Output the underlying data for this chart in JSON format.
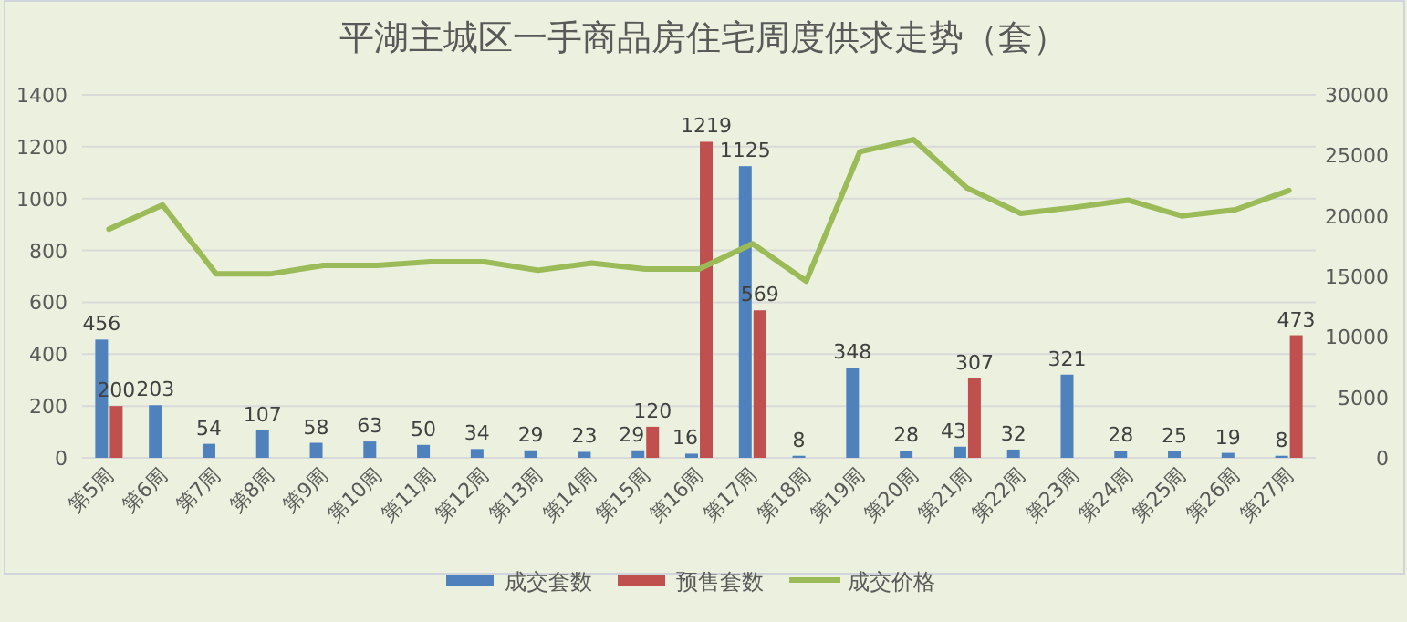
{
  "chart_data": {
    "type": "bar",
    "title": "平湖主城区一手商品房住宅周度供求走势（套）",
    "categories": [
      "第5周",
      "第6周",
      "第7周",
      "第8周",
      "第9周",
      "第10周",
      "第11周",
      "第12周",
      "第13周",
      "第14周",
      "第15周",
      "第16周",
      "第17周",
      "第18周",
      "第19周",
      "第20周",
      "第21周",
      "第22周",
      "第23周",
      "第24周",
      "第25周",
      "第26周",
      "第27周"
    ],
    "series": [
      {
        "name": "成交套数",
        "color": "#4f81bd",
        "values": [
          456,
          203,
          54,
          107,
          58,
          63,
          50,
          34,
          29,
          23,
          29,
          16,
          1125,
          8,
          348,
          28,
          43,
          32,
          321,
          28,
          25,
          19,
          8
        ],
        "value_labels": [
          "456",
          "203",
          "54",
          "107",
          "58",
          "63",
          "50",
          "34",
          "29",
          "23",
          "29",
          "16",
          "1125",
          "8",
          "348",
          "28",
          "43",
          "32",
          "321",
          "28",
          "25",
          "19",
          "8"
        ]
      },
      {
        "name": "预售套数",
        "color": "#c0504d",
        "values": [
          200,
          null,
          null,
          null,
          null,
          null,
          null,
          null,
          null,
          null,
          120,
          1219,
          569,
          null,
          null,
          null,
          307,
          null,
          null,
          null,
          null,
          null,
          473
        ],
        "value_labels": [
          "200",
          null,
          null,
          null,
          null,
          null,
          null,
          null,
          null,
          null,
          "120",
          "1219",
          "569",
          null,
          null,
          null,
          "307",
          null,
          null,
          null,
          null,
          null,
          "473"
        ]
      },
      {
        "name": "成交价格",
        "type": "line",
        "axis": "y2",
        "color": "#9bbb59",
        "values": [
          18900,
          20900,
          15200,
          15200,
          15900,
          15900,
          16200,
          16200,
          15500,
          16100,
          15600,
          15600,
          17700,
          14600,
          25300,
          26300,
          22300,
          20200,
          20700,
          21300,
          20000,
          20500,
          22100
        ]
      }
    ],
    "ylim": [
      0,
      1400
    ],
    "yticks": [
      0,
      200,
      400,
      600,
      800,
      1000,
      1200,
      1400
    ],
    "y2lim": [
      0,
      30000
    ],
    "y2ticks": [
      0,
      5000,
      10000,
      15000,
      20000,
      25000,
      30000
    ],
    "grid": "y",
    "legend": "bottom",
    "marker": "none"
  }
}
